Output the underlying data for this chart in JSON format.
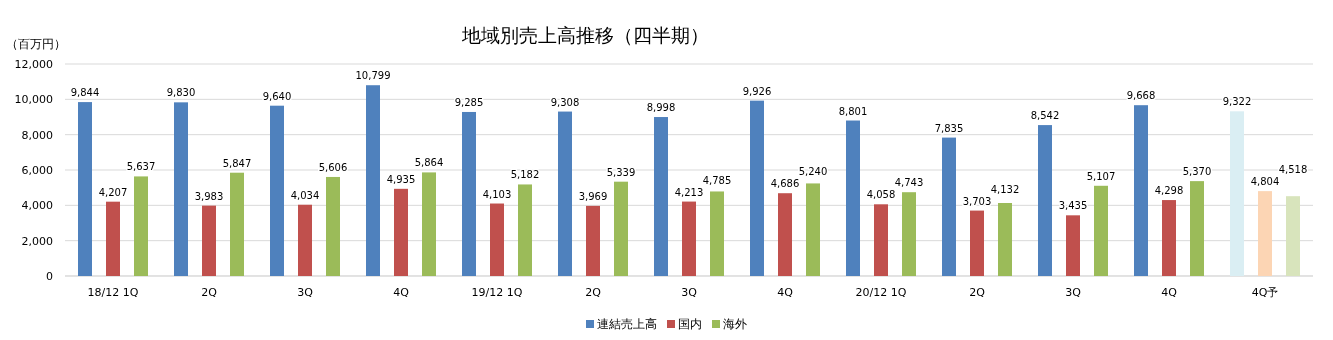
{
  "chart_data": {
    "type": "bar",
    "title": "地域別売上高推移（四半期）",
    "ylabel": "（百万円）",
    "categories": [
      "18/12 1Q",
      "2Q",
      "3Q",
      "4Q",
      "19/12 1Q",
      "2Q",
      "3Q",
      "4Q",
      "20/12 1Q",
      "2Q",
      "3Q",
      "4Q",
      "4Q予"
    ],
    "series": [
      {
        "name": "連結売上高",
        "color": "#4f81bd",
        "colors": [
          "#4f81bd",
          "#4f81bd",
          "#4f81bd",
          "#4f81bd",
          "#4f81bd",
          "#4f81bd",
          "#4f81bd",
          "#4f81bd",
          "#4f81bd",
          "#4f81bd",
          "#4f81bd",
          "#4f81bd",
          "#daeef3"
        ],
        "values": [
          9844,
          9830,
          9640,
          10799,
          9285,
          9308,
          8998,
          9926,
          8801,
          7835,
          8542,
          9668,
          9322
        ],
        "value_labels": [
          "9,844",
          "9,830",
          "9,640",
          "10,799",
          "9,285",
          "9,308",
          "8,998",
          "9,926",
          "8,801",
          "7,835",
          "8,542",
          "9,668",
          "9,322"
        ]
      },
      {
        "name": "国内",
        "color": "#c0504d",
        "colors": [
          "#c0504d",
          "#c0504d",
          "#c0504d",
          "#c0504d",
          "#c0504d",
          "#c0504d",
          "#c0504d",
          "#c0504d",
          "#c0504d",
          "#c0504d",
          "#c0504d",
          "#c0504d",
          "#fcd5b4"
        ],
        "values": [
          4207,
          3983,
          4034,
          4935,
          4103,
          3969,
          4213,
          4686,
          4058,
          3703,
          3435,
          4298,
          4804
        ],
        "value_labels": [
          "4,207",
          "3,983",
          "4,034",
          "4,935",
          "4,103",
          "3,969",
          "4,213",
          "4,686",
          "4,058",
          "3,703",
          "3,435",
          "4,298",
          "4,804"
        ]
      },
      {
        "name": "海外",
        "color": "#9bbb59",
        "colors": [
          "#9bbb59",
          "#9bbb59",
          "#9bbb59",
          "#9bbb59",
          "#9bbb59",
          "#9bbb59",
          "#9bbb59",
          "#9bbb59",
          "#9bbb59",
          "#9bbb59",
          "#9bbb59",
          "#9bbb59",
          "#d8e4bc"
        ],
        "values": [
          5637,
          5847,
          5606,
          5864,
          5182,
          5339,
          4785,
          5240,
          4743,
          4132,
          5107,
          5370,
          4518
        ],
        "value_labels": [
          "5,637",
          "5,847",
          "5,606",
          "5,864",
          "5,182",
          "5,339",
          "4,785",
          "5,240",
          "4,743",
          "4,132",
          "5,107",
          "5,370",
          "4,518"
        ]
      }
    ],
    "ylim": [
      0,
      12000
    ],
    "yticks": [
      {
        "value": 0,
        "label": "0"
      },
      {
        "value": 2000,
        "label": "2,000"
      },
      {
        "value": 4000,
        "label": "4,000"
      },
      {
        "value": 6000,
        "label": "6,000"
      },
      {
        "value": 8000,
        "label": "8,000"
      },
      {
        "value": 10000,
        "label": "10,000"
      },
      {
        "value": 12000,
        "label": "12,000"
      }
    ],
    "grid": "y",
    "legend": "bottom"
  }
}
